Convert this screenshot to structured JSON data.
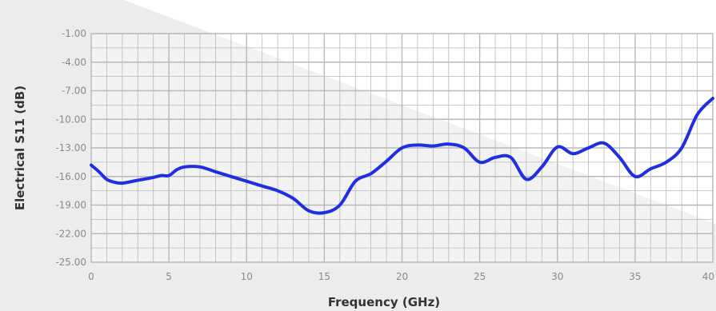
{
  "chart_data": {
    "type": "line",
    "xlabel": "Frequency (GHz)",
    "ylabel": "Electrical S11 (dB)",
    "xlim": [
      0,
      40
    ],
    "ylim": [
      -25,
      -1
    ],
    "x_ticks": [
      "0",
      "5",
      "10",
      "15",
      "20",
      "25",
      "30",
      "35",
      "40"
    ],
    "y_ticks": [
      "-1.00",
      "-4.00",
      "-7.00",
      "-10.00",
      "-13.00",
      "-16.00",
      "-19.00",
      "-22.00",
      "-25.00"
    ],
    "grid": true,
    "legend": "none",
    "colors": {
      "line": "#1f2fe0",
      "grid": "#b8b8b8",
      "background_band": "#e9e9e9"
    },
    "series": [
      {
        "x": [
          0,
          0.5,
          1,
          1.5,
          2,
          3,
          4,
          4.5,
          5,
          5.5,
          6,
          7,
          8,
          9,
          10,
          11,
          12,
          13,
          14,
          15,
          16,
          17,
          18,
          19,
          20,
          21,
          22,
          23,
          24,
          25,
          26,
          27,
          28,
          29,
          30,
          31,
          32,
          33,
          34,
          35,
          36,
          37,
          38,
          39,
          40
        ],
        "values": [
          -14.8,
          -15.5,
          -16.3,
          -16.6,
          -16.7,
          -16.4,
          -16.1,
          -15.9,
          -15.9,
          -15.3,
          -15.0,
          -15.0,
          -15.5,
          -16.0,
          -16.5,
          -17.0,
          -17.5,
          -18.3,
          -19.6,
          -19.8,
          -19.0,
          -16.5,
          -15.7,
          -14.4,
          -13.0,
          -12.7,
          -12.8,
          -12.6,
          -13.0,
          -14.5,
          -14.0,
          -14.0,
          -16.3,
          -15.0,
          -12.9,
          -13.6,
          -13.0,
          -12.5,
          -14.0,
          -16.0,
          -15.2,
          -14.5,
          -13.0,
          -9.5,
          -7.8
        ]
      }
    ]
  }
}
